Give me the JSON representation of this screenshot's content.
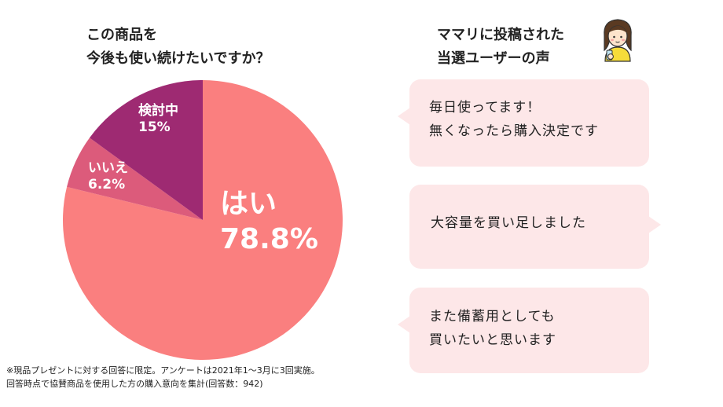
{
  "survey": {
    "title_line1": "この商品を",
    "title_line2": "今後も使い続けたいですか？"
  },
  "chart_data": {
    "type": "pie",
    "start_angle_deg": 0,
    "direction": "clockwise",
    "slices": [
      {
        "label": "はい",
        "value": 78.8,
        "display": "78.8%",
        "color": "#fa7f7f"
      },
      {
        "label": "いいえ",
        "value": 6.2,
        "display": "6.2%",
        "color": "#dc5b7b"
      },
      {
        "label": "検討中",
        "value": 15,
        "display": "15%",
        "color": "#9e2a72"
      }
    ]
  },
  "voices": {
    "title_line1": "ママリに投稿された",
    "title_line2": "当選ユーザーの声",
    "bubbles": [
      {
        "line1": "毎日使ってます！",
        "line2": "無くなったら購入決定です"
      },
      {
        "line1": "大容量を買い足しました",
        "line2": ""
      },
      {
        "line1": "また備蓄用としても",
        "line2": "買いたいと思います"
      }
    ]
  },
  "footnote": {
    "line1": "※現品プレゼントに対する回答に限定。アンケートは2021年1〜3月に3回実施。",
    "line2": "回答時点で協賛商品を使用した方の購入意向を集計(回答数：942)"
  },
  "avatar": {
    "icon": "woman-with-phone-icon",
    "hair": "#5a3a22",
    "shirt": "#f5dc3a"
  }
}
